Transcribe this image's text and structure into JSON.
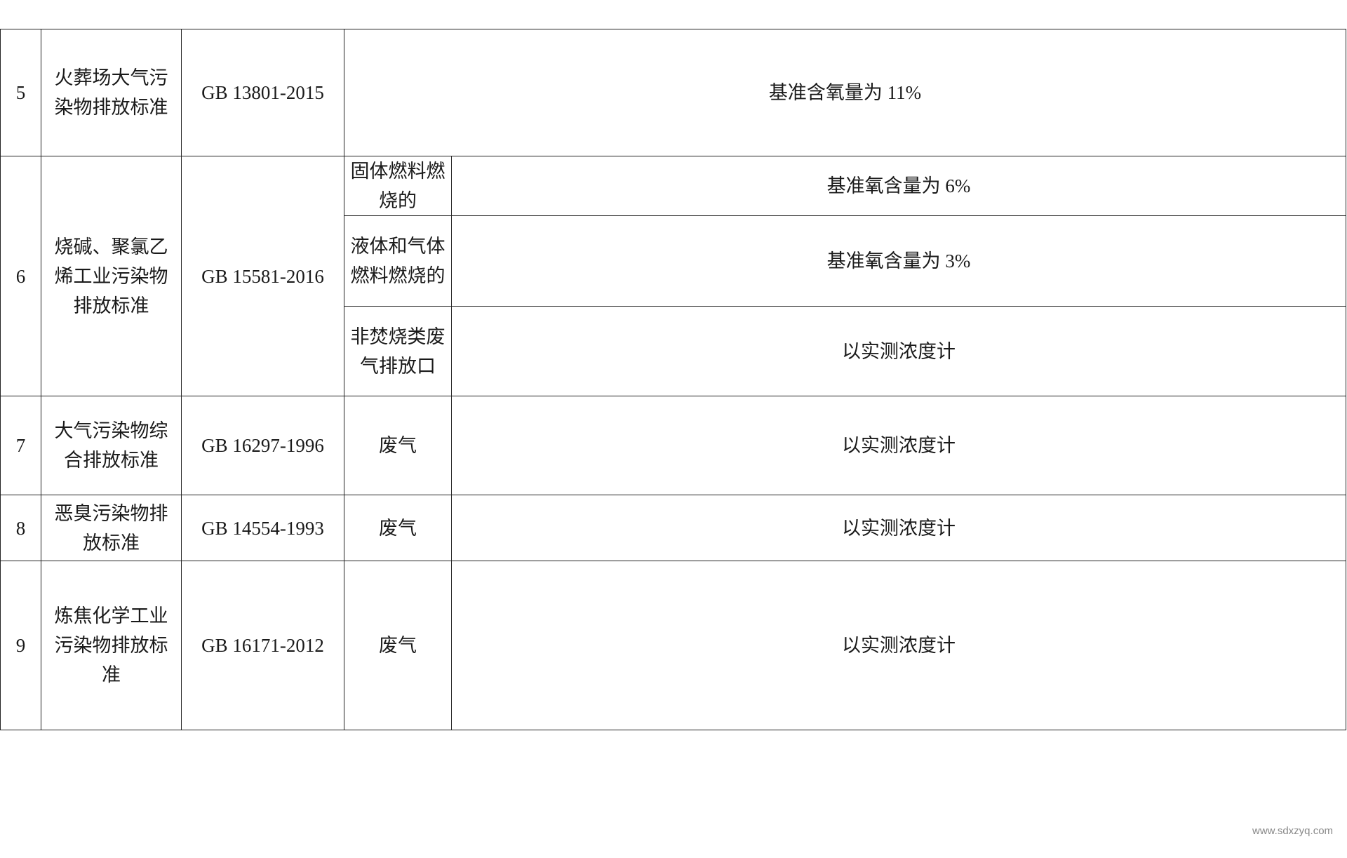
{
  "rows": [
    {
      "no": "5",
      "name": "火葬场大气污染物排放标准",
      "code": "GB 13801-2015",
      "note": "基准含氧量为 11%"
    },
    {
      "no": "6",
      "name": "烧碱、聚氯乙烯工业污染物排放标准",
      "code": "GB 15581-2016",
      "sub": [
        {
          "type": "固体燃料燃烧的",
          "note": "基准氧含量为 6%"
        },
        {
          "type": "液体和气体燃料燃烧的",
          "note": "基准氧含量为 3%"
        },
        {
          "type": "非焚烧类废气排放口",
          "note": "以实测浓度计"
        }
      ]
    },
    {
      "no": "7",
      "name": "大气污染物综合排放标准",
      "code": "GB 16297-1996",
      "type": "废气",
      "note": "以实测浓度计"
    },
    {
      "no": "8",
      "name": "恶臭污染物排放标准",
      "code": "GB 14554-1993",
      "type": "废气",
      "note": "以实测浓度计"
    },
    {
      "no": "9",
      "name": "炼焦化学工业污染物排放标准",
      "code": "GB 16171-2012",
      "type": "废气",
      "note": "以实测浓度计"
    }
  ],
  "watermark": "www.sdxzyq.com"
}
